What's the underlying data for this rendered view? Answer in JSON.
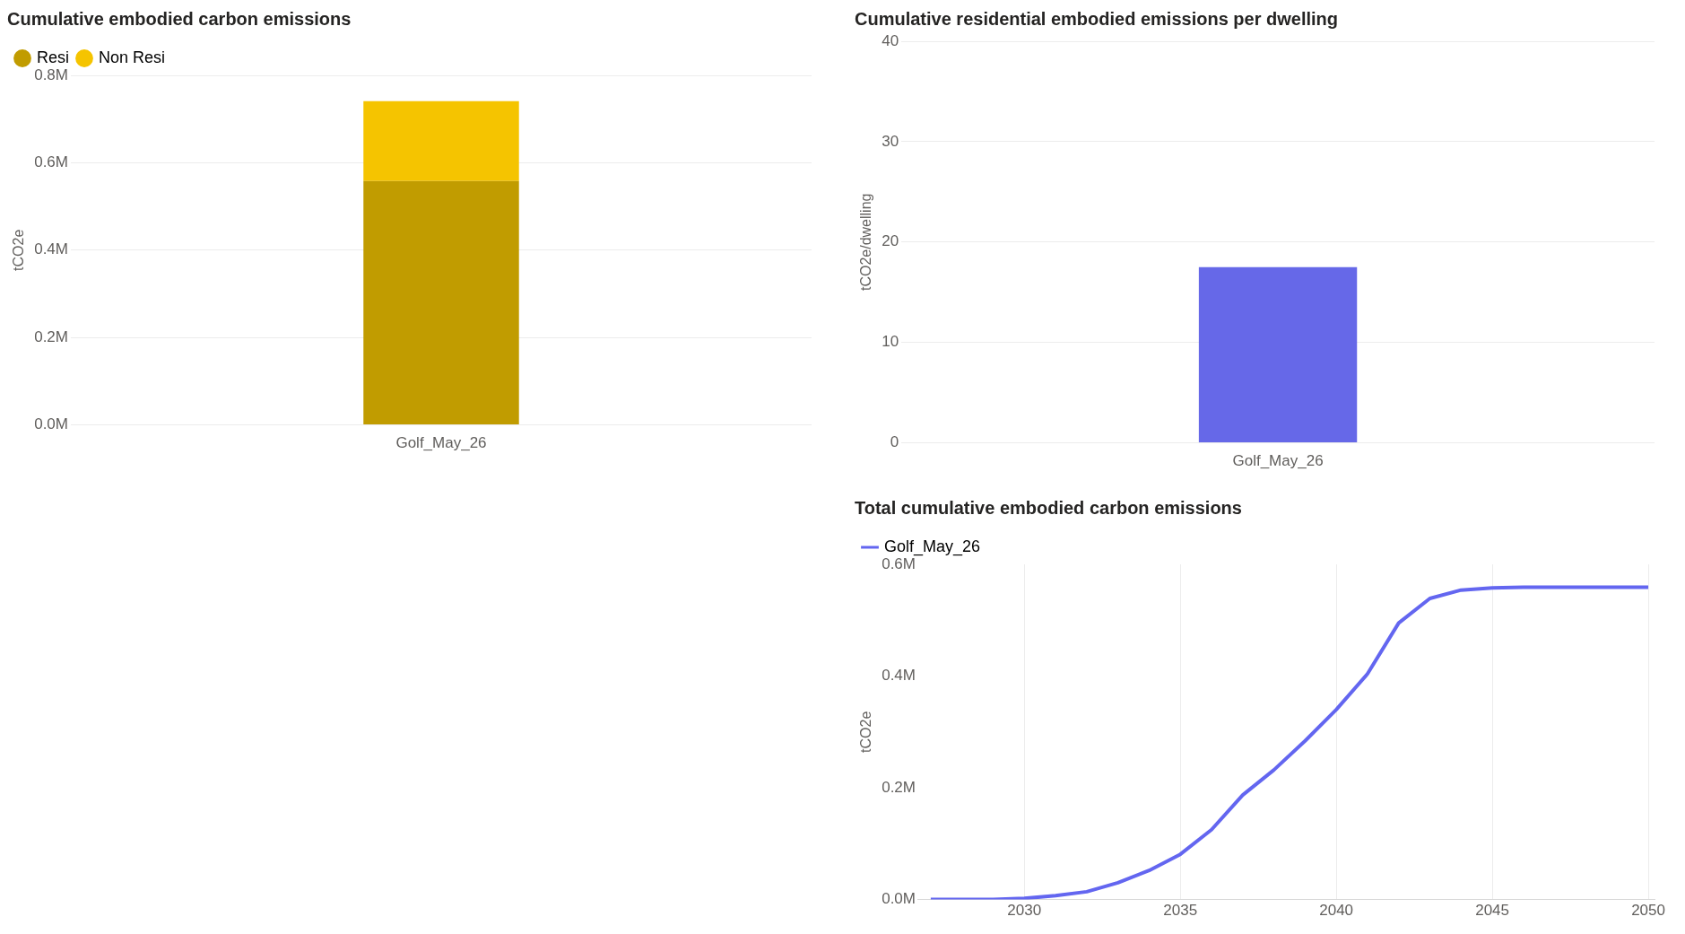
{
  "chart_data": [
    {
      "type": "bar",
      "title": "Cumulative embodied carbon emissions",
      "ylabel": "tCO2e",
      "categories": [
        "Golf_May_26"
      ],
      "stacked": true,
      "series": [
        {
          "name": "Resi",
          "color": "#c19c00",
          "values": [
            558000
          ]
        },
        {
          "name": "Non Resi",
          "color": "#f5c400",
          "values": [
            183000
          ]
        }
      ],
      "ylim": [
        0,
        800000
      ],
      "yticks": [
        {
          "value": 0,
          "label": "0.0M"
        },
        {
          "value": 200000,
          "label": "0.2M"
        },
        {
          "value": 400000,
          "label": "0.4M"
        },
        {
          "value": 600000,
          "label": "0.6M"
        },
        {
          "value": 800000,
          "label": "0.8M"
        }
      ],
      "grid": "y",
      "legend": "top left"
    },
    {
      "type": "bar",
      "title": "Cumulative residential embodied emissions per dwelling",
      "ylabel": "tCO2e/dwelling",
      "categories": [
        "Golf_May_26"
      ],
      "series": [
        {
          "color": "#6668e8",
          "values": [
            17.5
          ]
        }
      ],
      "ylim": [
        0,
        40
      ],
      "yticks": [
        0,
        10,
        20,
        30,
        40
      ],
      "grid": "y"
    },
    {
      "type": "line",
      "title": "Total cumulative embodied carbon emissions",
      "ylabel": "tCO2e",
      "x": [
        2027,
        2028,
        2029,
        2030,
        2031,
        2032,
        2033,
        2034,
        2035,
        2036,
        2037,
        2038,
        2039,
        2040,
        2041,
        2042,
        2043,
        2044,
        2045,
        2046,
        2047,
        2048,
        2049,
        2050
      ],
      "series": [
        {
          "name": "Golf_May_26",
          "color": "#6366f0",
          "values": [
            0,
            0,
            0,
            2000,
            7000,
            14000,
            30000,
            52000,
            81000,
            125000,
            187000,
            232000,
            284000,
            340000,
            404000,
            495000,
            539000,
            554000,
            558000,
            559000,
            559000,
            559000,
            559000,
            559000
          ]
        }
      ],
      "xlim": [
        2026.6,
        2050.2
      ],
      "xticks": [
        2030,
        2035,
        2040,
        2045,
        2050
      ],
      "ylim": [
        0,
        600000
      ],
      "yticks": [
        {
          "value": 0,
          "label": "0.0M"
        },
        {
          "value": 200000,
          "label": "0.2M"
        },
        {
          "value": 400000,
          "label": "0.4M"
        },
        {
          "value": 600000,
          "label": "0.6M"
        }
      ],
      "grid": "x",
      "legend": "top left",
      "marker": "none",
      "line_style": "solid"
    }
  ]
}
